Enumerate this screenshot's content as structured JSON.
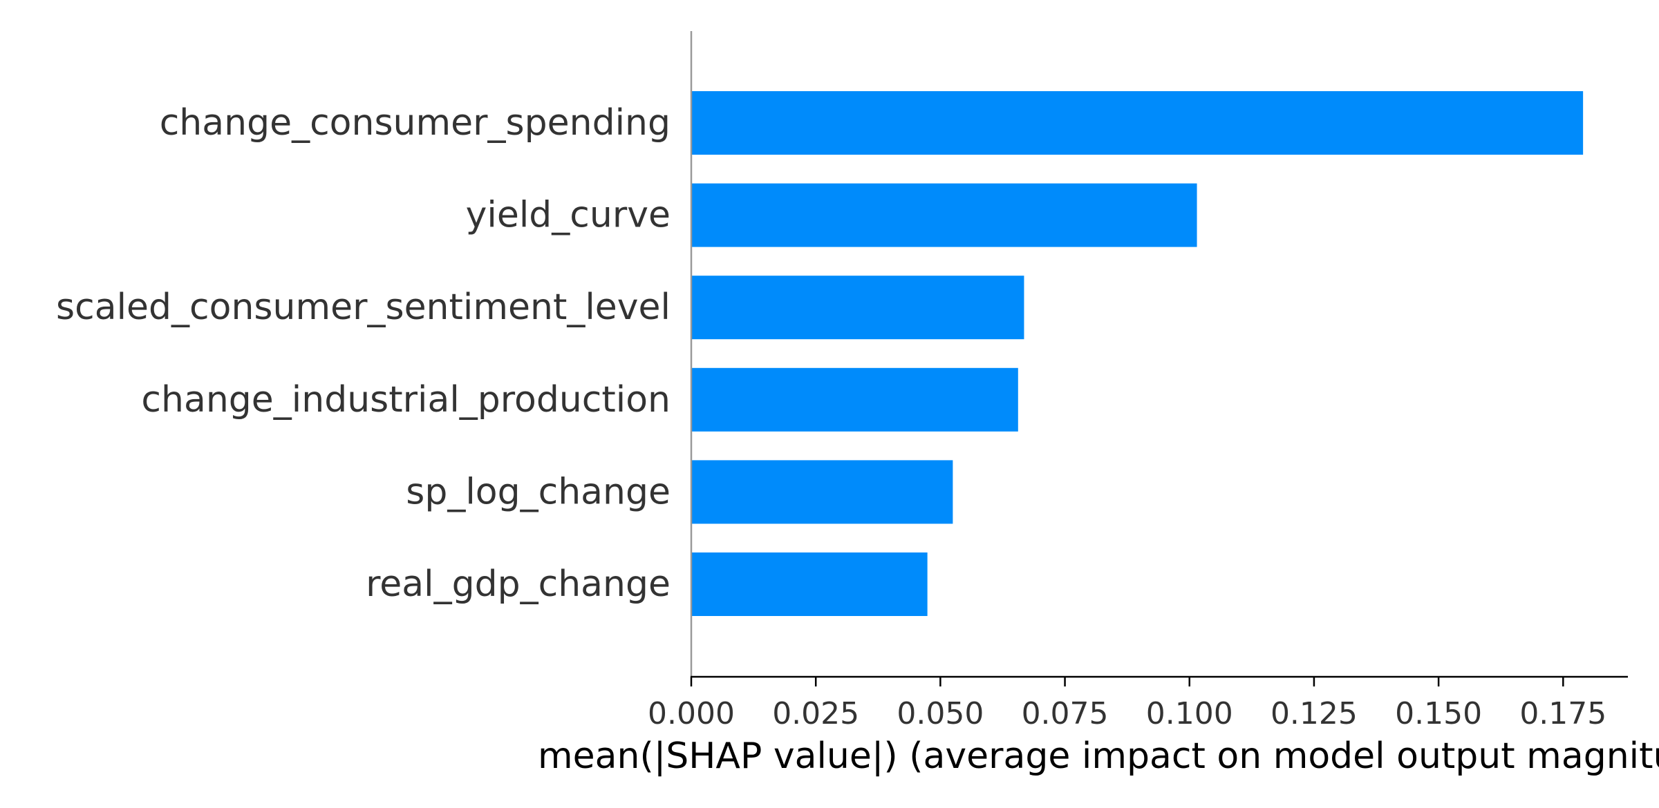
{
  "chart_data": {
    "type": "bar",
    "orientation": "horizontal",
    "title": "",
    "categories": [
      "change_consumer_spending",
      "yield_curve",
      "scaled_consumer_sentiment_level",
      "change_industrial_production",
      "sp_log_change",
      "real_gdp_change"
    ],
    "values": [
      0.179,
      0.1015,
      0.0668,
      0.0656,
      0.0525,
      0.0474
    ],
    "xlabel": "mean(|SHAP value|) (average impact on model output magnitude)",
    "ylabel": "",
    "xlim": [
      0,
      0.188
    ],
    "xticks": [
      "0.000",
      "0.025",
      "0.050",
      "0.075",
      "0.100",
      "0.125",
      "0.150",
      "0.175"
    ],
    "grid": false,
    "legend": "none",
    "colors": {
      "bar": "#008bfb",
      "axis": "#000000",
      "zero_line": "#999999",
      "label_text": "#333333"
    }
  }
}
